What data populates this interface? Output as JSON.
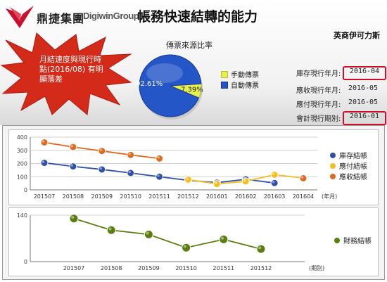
{
  "header": {
    "brand_cn": "鼎捷集團",
    "brand_en": "DigiwinGroup",
    "title": "帳務快速結轉的能力",
    "company": "英商伊可力斯"
  },
  "callout": {
    "text": "月結速度與現行時點(2016/08) 有明顯落差"
  },
  "status": [
    {
      "label": "庫存現行年月:",
      "value": "2016-04",
      "highlight": true
    },
    {
      "label": "應收現行年月:",
      "value": "2016-05",
      "highlight": false
    },
    {
      "label": "應付現行年月:",
      "value": "2016-05",
      "highlight": false
    },
    {
      "label": "會計現行期別:",
      "value": "2016-01",
      "highlight": true
    }
  ],
  "colors": {
    "inventory": "#2f4fa8",
    "payable": "#f0c020",
    "receivable": "#e06a20",
    "finance": "#5a7d10",
    "highlight_border": "#c8102e",
    "pie_auto": "#2456c8",
    "pie_manual": "#e8f050"
  },
  "chart_data": [
    {
      "type": "pie",
      "title": "傳票來源比率",
      "labels": [
        "手動傳票",
        "自動傳票"
      ],
      "values": [
        7.39,
        92.61
      ],
      "value_labels": [
        "7.39%",
        "92.61%"
      ]
    },
    {
      "type": "line",
      "categories": [
        "201507",
        "201508",
        "201509",
        "201510",
        "201511",
        "201512",
        "201601",
        "201602",
        "201603",
        "201604"
      ],
      "xlabel": "(年月)",
      "ylim": [
        0,
        400
      ],
      "yticks": [
        "0",
        "100",
        "200",
        "300",
        "400"
      ],
      "grid": true,
      "legend": "right",
      "series": [
        {
          "name": "庫存結帳",
          "values": [
            205,
            178,
            155,
            128,
            100,
            72,
            55,
            80,
            52,
            null
          ]
        },
        {
          "name": "應付結帳",
          "values": [
            null,
            null,
            null,
            null,
            null,
            78,
            45,
            65,
            115,
            90
          ]
        },
        {
          "name": "應收結帳",
          "values": [
            360,
            325,
            295,
            265,
            238,
            null,
            null,
            null,
            null,
            88
          ]
        }
      ]
    },
    {
      "type": "line",
      "categories": [
        "201507",
        "201508",
        "201509",
        "201510",
        "201511",
        "201512"
      ],
      "xlabel": "(期別)",
      "ylim": [
        0,
        140
      ],
      "yticks": [
        "0",
        "140"
      ],
      "grid": true,
      "legend": "right",
      "series": [
        {
          "name": "財務結帳",
          "values": [
            130,
            95,
            82,
            42,
            67,
            38
          ]
        }
      ]
    }
  ]
}
